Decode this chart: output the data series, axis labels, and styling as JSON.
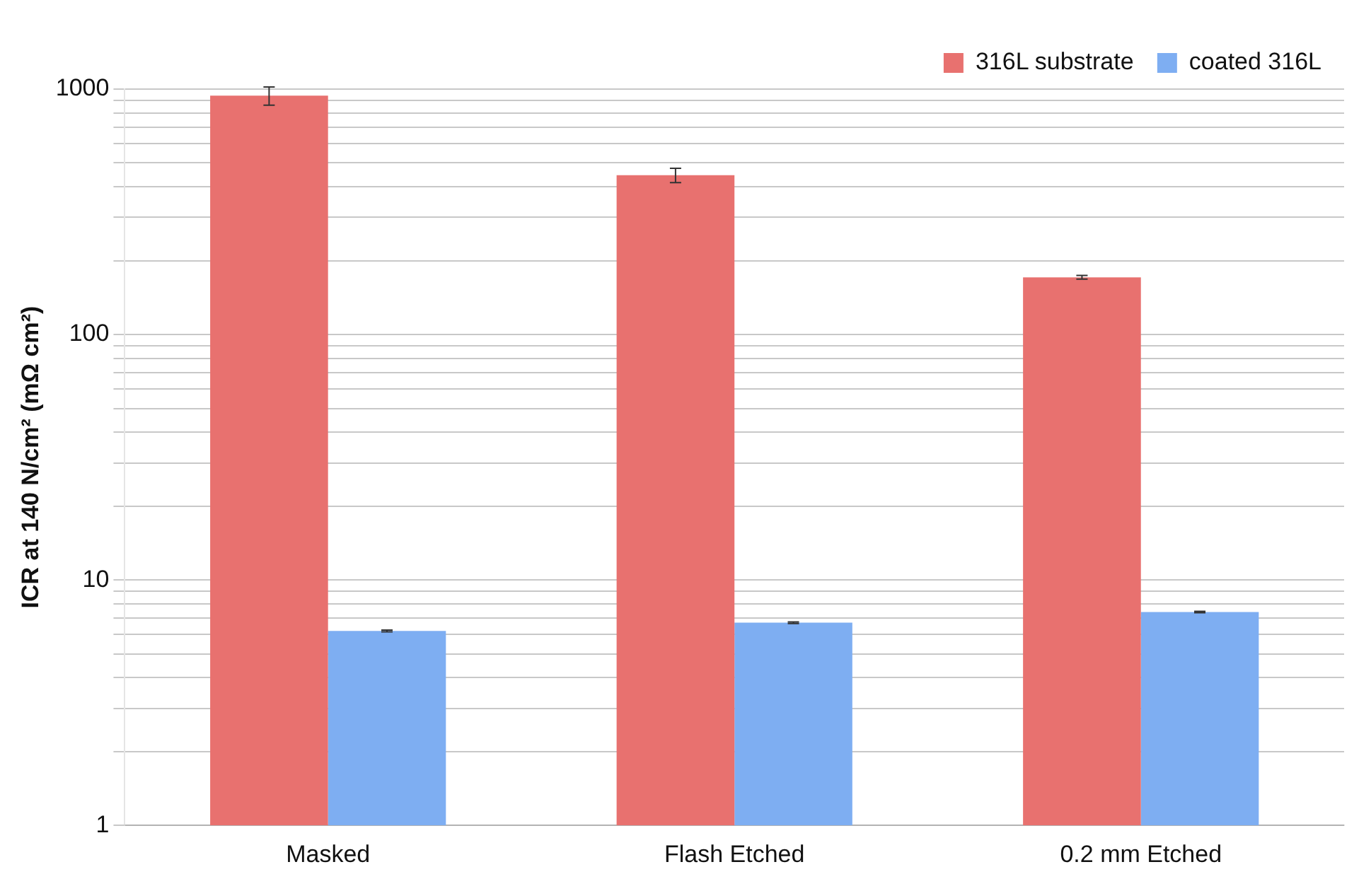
{
  "chart_data": {
    "type": "bar",
    "ylabel": "ICR at 140 N/cm² (mΩ cm²)",
    "categories": [
      "Masked",
      "Flash Etched",
      "0.2 mm Etched"
    ],
    "series": [
      {
        "name": "316L substrate",
        "color": "#e8716f",
        "values": [
          940,
          446,
          171
        ],
        "errors": [
          80,
          30,
          3
        ]
      },
      {
        "name": "coated 316L",
        "color": "#7eaef2",
        "values": [
          6.2,
          6.7,
          7.4
        ],
        "errors": [
          0.05,
          0.05,
          0.05
        ]
      }
    ],
    "log": true,
    "ylim": [
      1,
      1000
    ],
    "yticks": [
      1,
      {
        "value": 2,
        "label": null
      },
      {
        "value": 3,
        "label": null
      },
      {
        "value": 4,
        "label": null
      },
      {
        "value": 5,
        "label": null
      },
      {
        "value": 6,
        "label": null
      },
      {
        "value": 7,
        "label": null
      },
      {
        "value": 8,
        "label": null
      },
      {
        "value": 9,
        "label": null
      },
      10,
      {
        "value": 20,
        "label": null
      },
      {
        "value": 30,
        "label": null
      },
      {
        "value": 40,
        "label": null
      },
      {
        "value": 50,
        "label": null
      },
      {
        "value": 60,
        "label": null
      },
      {
        "value": 70,
        "label": null
      },
      {
        "value": 80,
        "label": null
      },
      {
        "value": 90,
        "label": null
      },
      100,
      {
        "value": 200,
        "label": null
      },
      {
        "value": 300,
        "label": null
      },
      {
        "value": 400,
        "label": null
      },
      {
        "value": 500,
        "label": null
      },
      {
        "value": 600,
        "label": null
      },
      {
        "value": 700,
        "label": null
      },
      {
        "value": 800,
        "label": null
      },
      {
        "value": 900,
        "label": null
      },
      1000
    ],
    "grid": "y",
    "legend": "top right"
  }
}
